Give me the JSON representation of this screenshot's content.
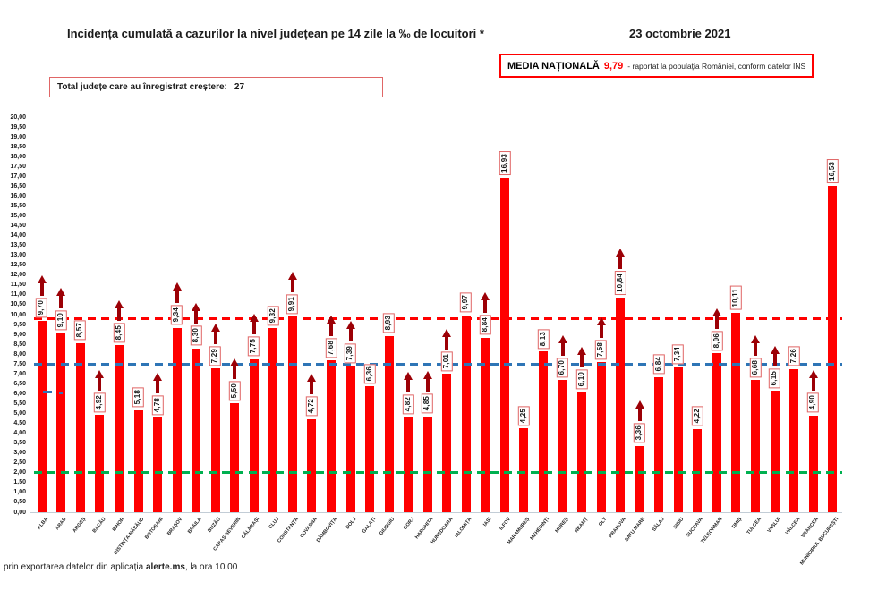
{
  "header": {
    "title": "Incidența cumulată a cazurilor la nivel județean pe 14 zile la ‰ de locuitori *",
    "date": "23 octombrie 2021",
    "national_average": {
      "label": "MEDIA NAȚIONALĂ",
      "value": "9,79",
      "note": "-  raportat la populația României, conform datelor INS",
      "value_color": "#ff0000"
    },
    "total_increase": {
      "label": "Total județe care au înregistrat creștere:",
      "value": "27"
    }
  },
  "footer": {
    "prefix": "prin exportarea datelor din aplicația ",
    "app_name": "alerte.ms",
    "suffix": ", la ora 10.00"
  },
  "chart_data": {
    "type": "bar",
    "title": "Incidența cumulată a cazurilor la nivel județean pe 14 zile la ‰ de locuitori",
    "xlabel": "",
    "ylabel": "",
    "ylim": [
      0,
      20
    ],
    "ytick_step": 0.5,
    "decimal_separator": ",",
    "grid": "off",
    "legend": "none",
    "bar_color": "#ff0000",
    "value_box_border_color": "#e06666",
    "increase_arrow_color": "#9c0006",
    "categories": [
      "ALBA",
      "ARAD",
      "ARGEȘ",
      "BACĂU",
      "BIHOR",
      "BISTRIȚA-NĂSĂUD",
      "BOTOȘANI",
      "BRAȘOV",
      "BRĂILA",
      "BUZĂU",
      "CARAȘ-SEVERIN",
      "CĂLĂRAȘI",
      "CLUJ",
      "CONSTANȚA",
      "COVASNA",
      "DÂMBOVIȚA",
      "DOLJ",
      "GALAȚI",
      "GIURGIU",
      "GORJ",
      "HARGHITA",
      "HUNEDOARA",
      "IALOMIȚA",
      "IAȘI",
      "ILFOV",
      "MARAMUREȘ",
      "MEHEDINȚI",
      "MUREȘ",
      "NEAMȚ",
      "OLT",
      "PRAHOVA",
      "SATU MARE",
      "SĂLAJ",
      "SIBIU",
      "SUCEAVA",
      "TELEORMAN",
      "TIMIȘ",
      "TULCEA",
      "VASLUI",
      "VÂLCEA",
      "VRANCEA",
      "MUNICIPIUL BUCUREȘTI"
    ],
    "values": [
      9.7,
      9.1,
      8.57,
      4.92,
      8.45,
      5.18,
      4.78,
      9.34,
      8.3,
      7.29,
      5.5,
      7.75,
      9.32,
      9.91,
      4.72,
      7.68,
      7.39,
      6.36,
      8.93,
      4.82,
      4.85,
      7.01,
      9.97,
      8.84,
      16.93,
      4.25,
      8.13,
      6.7,
      6.1,
      7.58,
      10.84,
      3.36,
      6.84,
      7.34,
      4.22,
      8.06,
      10.11,
      6.68,
      6.15,
      7.26,
      4.9,
      16.53
    ],
    "value_labels": [
      "9,70",
      "9,10",
      "8,57",
      "4,92",
      "8,45",
      "5,18",
      "4,78",
      "9,34",
      "8,30",
      "7,29",
      "5,50",
      "7,75",
      "9,32",
      "9,91",
      "4,72",
      "7,68",
      "7,39",
      "6,36",
      "8,93",
      "4,82",
      "4,85",
      "7,01",
      "9,97",
      "8,84",
      "16,93",
      "4,25",
      "8,13",
      "6,70",
      "6,10",
      "7,58",
      "10,84",
      "3,36",
      "6,84",
      "7,34",
      "4,22",
      "8,06",
      "10,11",
      "6,68",
      "6,15",
      "7,26",
      "4,90",
      "16,53"
    ],
    "increase_arrow": [
      true,
      true,
      false,
      true,
      true,
      false,
      true,
      true,
      true,
      true,
      true,
      true,
      false,
      true,
      true,
      true,
      true,
      false,
      false,
      true,
      true,
      true,
      false,
      true,
      false,
      false,
      false,
      true,
      true,
      true,
      true,
      true,
      false,
      false,
      false,
      true,
      false,
      true,
      true,
      false,
      true,
      false
    ],
    "reference_lines": [
      {
        "name": "media-nationala",
        "value": 9.79,
        "color": "#ff0000",
        "style": "dashed"
      },
      {
        "name": "reference-7-50",
        "value": 7.5,
        "color": "#2e75b6",
        "style": "dashed"
      },
      {
        "name": "reference-2-00",
        "value": 2.0,
        "color": "#00b050",
        "style": "dashed"
      }
    ]
  }
}
